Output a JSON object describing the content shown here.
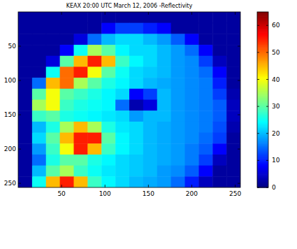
{
  "chart_data": {
    "type": "heatmap",
    "title": "KEAX 20:00 UTC March 12, 2006 -Reflectivity",
    "xlim": [
      0,
      256
    ],
    "ylim": [
      256,
      0
    ],
    "xticks": [
      50,
      100,
      150,
      200,
      250
    ],
    "yticks": [
      50,
      100,
      150,
      200,
      250
    ],
    "colorbar_range": [
      0,
      65
    ],
    "colorbar_ticks": [
      0,
      10,
      20,
      30,
      40,
      50,
      60
    ],
    "cells": [
      [
        2,
        2,
        2,
        2,
        2,
        2,
        2,
        2,
        2,
        2,
        2,
        2,
        2,
        2,
        2,
        2
      ],
      [
        2,
        2,
        2,
        2,
        2,
        2,
        8,
        12,
        12,
        10,
        8,
        2,
        2,
        2,
        2,
        2
      ],
      [
        2,
        2,
        2,
        2,
        6,
        15,
        20,
        22,
        22,
        20,
        18,
        14,
        8,
        2,
        2,
        2
      ],
      [
        2,
        2,
        2,
        8,
        25,
        35,
        30,
        24,
        22,
        22,
        20,
        18,
        15,
        8,
        2,
        2
      ],
      [
        2,
        2,
        6,
        30,
        45,
        55,
        45,
        28,
        24,
        22,
        20,
        18,
        17,
        12,
        4,
        2
      ],
      [
        2,
        2,
        25,
        50,
        55,
        40,
        30,
        25,
        22,
        21,
        20,
        18,
        17,
        15,
        8,
        2
      ],
      [
        2,
        15,
        45,
        50,
        35,
        30,
        26,
        24,
        22,
        20,
        19,
        18,
        17,
        16,
        10,
        2
      ],
      [
        2,
        30,
        40,
        30,
        28,
        26,
        24,
        22,
        8,
        12,
        20,
        18,
        17,
        16,
        12,
        3
      ],
      [
        2,
        35,
        40,
        28,
        26,
        25,
        24,
        15,
        3,
        6,
        20,
        18,
        17,
        16,
        14,
        4
      ],
      [
        2,
        28,
        30,
        26,
        25,
        24,
        23,
        22,
        18,
        20,
        20,
        18,
        17,
        16,
        14,
        4
      ],
      [
        2,
        20,
        26,
        35,
        45,
        35,
        26,
        23,
        22,
        20,
        19,
        18,
        17,
        16,
        13,
        3
      ],
      [
        2,
        22,
        30,
        45,
        55,
        55,
        30,
        24,
        22,
        20,
        19,
        18,
        17,
        15,
        12,
        2
      ],
      [
        2,
        18,
        28,
        40,
        55,
        45,
        28,
        24,
        22,
        20,
        19,
        18,
        16,
        14,
        8,
        2
      ],
      [
        2,
        15,
        26,
        30,
        30,
        26,
        24,
        22,
        21,
        20,
        19,
        18,
        16,
        12,
        4,
        2
      ],
      [
        2,
        20,
        30,
        35,
        28,
        25,
        23,
        22,
        21,
        20,
        18,
        17,
        14,
        8,
        2,
        2
      ],
      [
        2,
        25,
        45,
        55,
        45,
        28,
        24,
        22,
        20,
        19,
        18,
        15,
        10,
        4,
        2,
        2
      ]
    ]
  }
}
